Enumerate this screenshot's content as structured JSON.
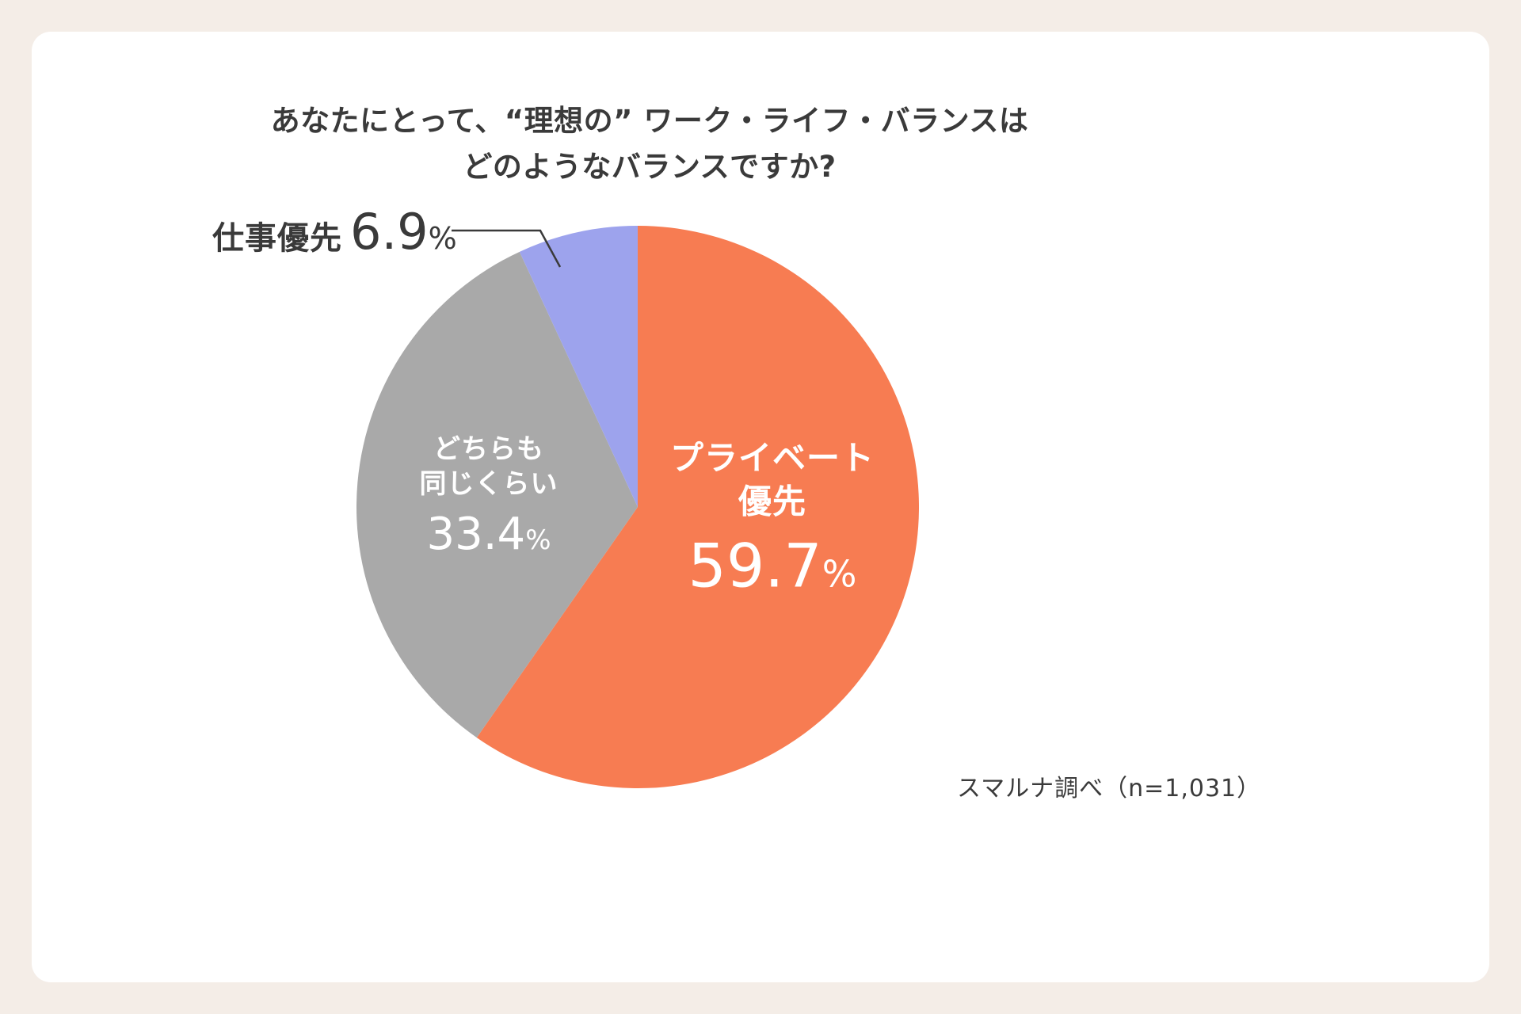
{
  "title": {
    "line1": "あなたにとって、“理想の” ワーク・ライフ・バランスは",
    "line2": "どのようなバランスですか?"
  },
  "source_note": "スマルナ調べ（n=1,031）",
  "chart_data": {
    "type": "pie",
    "title": "あなたにとって、“理想の” ワーク・ライフ・バランスはどのようなバランスですか?",
    "start_angle_deg": 0,
    "direction": "clockwise",
    "sample_size_label": "n=1,031",
    "legend_position": "none",
    "slices": [
      {
        "id": "private",
        "label": "プライベート優先",
        "value": 59.7,
        "color": "#F77C52"
      },
      {
        "id": "equal",
        "label": "どちらも同じくらい",
        "value": 33.4,
        "color": "#A9A9A9"
      },
      {
        "id": "work",
        "label": "仕事優先",
        "value": 6.9,
        "color": "#9DA3ED"
      }
    ]
  },
  "labels": {
    "private": {
      "line1": "プライベート",
      "line2": "優先",
      "value": "59.7",
      "unit": "%"
    },
    "equal": {
      "line1": "どちらも",
      "line2": "同じくらい",
      "value": "33.4",
      "unit": "%"
    },
    "work": {
      "name": "仕事優先",
      "value": "6.9",
      "unit": "%"
    }
  },
  "colors": {
    "background": "#F4EDE7",
    "card": "#FFFFFF",
    "text": "#3A3A3A",
    "label_on_slice": "#FFFFFF",
    "leader_line": "#3A3A3A"
  }
}
